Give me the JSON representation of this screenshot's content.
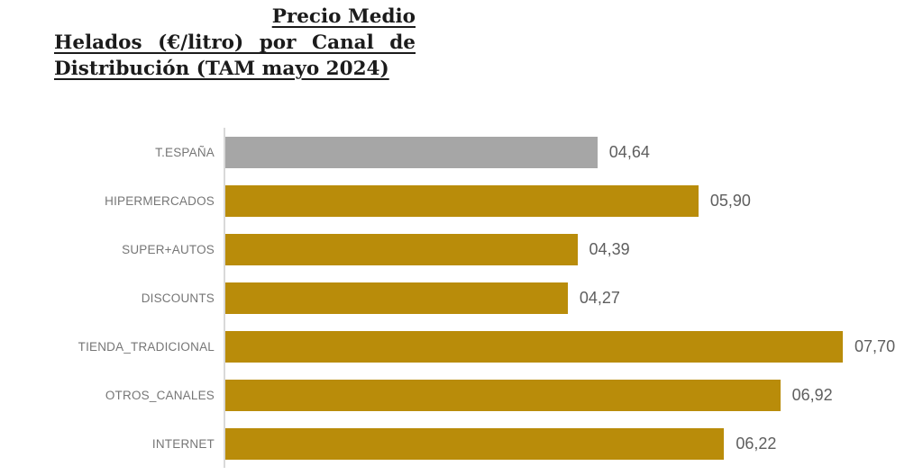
{
  "title": {
    "full": "Precio Medio Helados (€/litro) por Canal de Distribución (TAM mayo 2024)",
    "lines": [
      "Precio Medio",
      "Helados (€/litro) por Canal de",
      "Distribución (TAM mayo 2024)"
    ]
  },
  "colors": {
    "title_text": "#1b1b1b",
    "axis_line": "#d9d9d9",
    "category_label": "#767676",
    "value_label": "#5e5e5e",
    "bar_total": "#a6a6a6",
    "bar_channel": "#b98c0a"
  },
  "chart_data": {
    "type": "bar",
    "orientation": "horizontal",
    "title": "Precio Medio Helados (€/litro) por Canal de Distribución (TAM mayo 2024)",
    "xlabel": "",
    "ylabel": "",
    "categories": [
      "T.ESPAÑA",
      "HIPERMERCADOS",
      "SUPER+AUTOS",
      "DISCOUNTS",
      "TIENDA_TRADICIONAL",
      "OTROS_CANALES",
      "INTERNET"
    ],
    "values": [
      4.64,
      5.9,
      4.39,
      4.27,
      7.7,
      6.92,
      6.22
    ],
    "value_labels": [
      "04,64",
      "05,90",
      "04,39",
      "04,27",
      "07,70",
      "06,92",
      "06,22"
    ],
    "bar_colors": [
      "#a6a6a6",
      "#b98c0a",
      "#b98c0a",
      "#b98c0a",
      "#b98c0a",
      "#b98c0a",
      "#b98c0a"
    ],
    "xlim": [
      0,
      8.7
    ],
    "grid": false,
    "legend": false
  }
}
